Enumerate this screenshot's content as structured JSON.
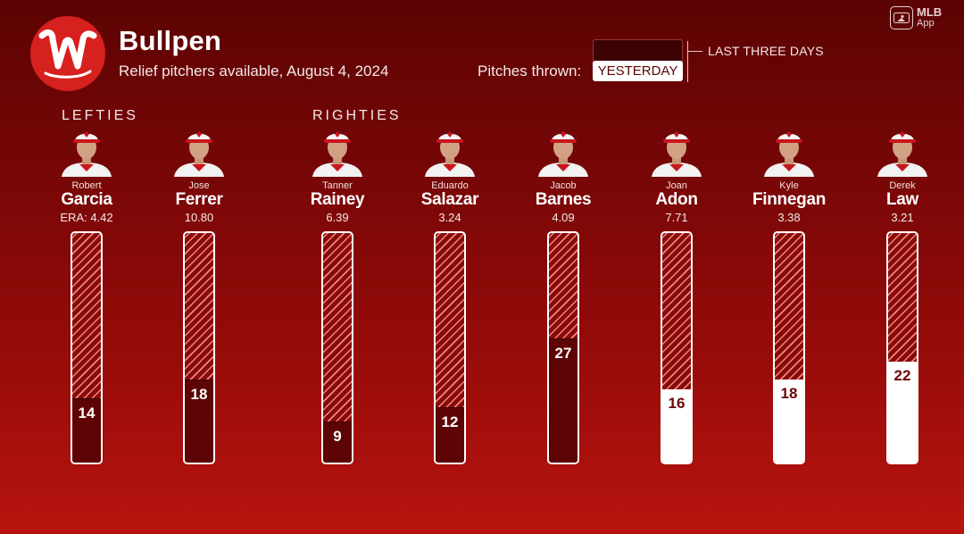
{
  "header": {
    "title": "Bullpen",
    "subtitle": "Relief pitchers available, August 4, 2024"
  },
  "legend": {
    "label": "Pitches thrown:",
    "yesterday": "YESTERDAY",
    "last_three_days": "LAST THREE DAYS"
  },
  "branding": {
    "app": "MLB",
    "app_sub": "App"
  },
  "groups": {
    "lefties": "LEFTIES",
    "righties": "RIGHTIES"
  },
  "colors": {
    "team_red": "#d6211f",
    "last_three_days": "#5e0404",
    "yesterday": "#ffffff"
  },
  "chart_data": {
    "type": "bar",
    "title": "Bullpen",
    "subtitle": "Relief pitchers available, August 4, 2024",
    "ylim": [
      0,
      50
    ],
    "era_label": "ERA:",
    "series": [
      {
        "name": "LAST THREE DAYS",
        "values": [
          14,
          18,
          9,
          12,
          27,
          null,
          null,
          null
        ]
      },
      {
        "name": "YESTERDAY",
        "values": [
          null,
          null,
          null,
          null,
          null,
          16,
          18,
          22
        ]
      }
    ],
    "pitchers": [
      {
        "first": "Robert",
        "last": "Garcia",
        "era": "4.42",
        "group": "lefties",
        "pitches": 14,
        "period": "last_three_days"
      },
      {
        "first": "Jose",
        "last": "Ferrer",
        "era": "10.80",
        "group": "lefties",
        "pitches": 18,
        "period": "last_three_days"
      },
      {
        "first": "Tanner",
        "last": "Rainey",
        "era": "6.39",
        "group": "righties",
        "pitches": 9,
        "period": "last_three_days"
      },
      {
        "first": "Eduardo",
        "last": "Salazar",
        "era": "3.24",
        "group": "righties",
        "pitches": 12,
        "period": "last_three_days"
      },
      {
        "first": "Jacob",
        "last": "Barnes",
        "era": "4.09",
        "group": "righties",
        "pitches": 27,
        "period": "last_three_days"
      },
      {
        "first": "Joan",
        "last": "Adon",
        "era": "7.71",
        "group": "righties",
        "pitches": 16,
        "period": "yesterday"
      },
      {
        "first": "Kyle",
        "last": "Finnegan",
        "era": "3.38",
        "group": "righties",
        "pitches": 18,
        "period": "yesterday"
      },
      {
        "first": "Derek",
        "last": "Law",
        "era": "3.21",
        "group": "righties",
        "pitches": 22,
        "period": "yesterday"
      }
    ]
  }
}
